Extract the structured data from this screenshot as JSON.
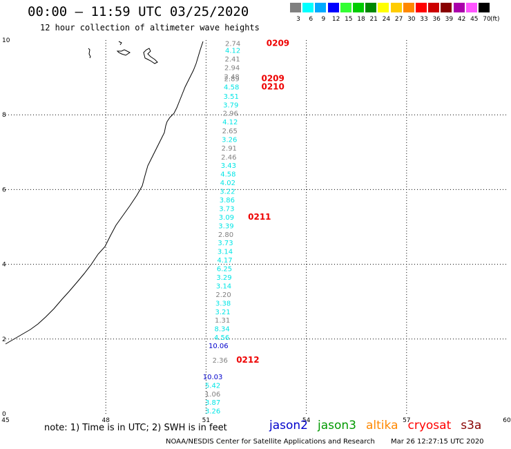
{
  "title": "00:00 – 11:59 UTC 03/25/2020",
  "subtitle": "12 hour collection of altimeter wave heights",
  "legend": {
    "unit": "(ft)",
    "bins": [
      {
        "label": "3",
        "color": "#808080"
      },
      {
        "label": "6",
        "color": "#00ffff"
      },
      {
        "label": "9",
        "color": "#00aaff"
      },
      {
        "label": "12",
        "color": "#0000ff"
      },
      {
        "label": "15",
        "color": "#33ff33"
      },
      {
        "label": "18",
        "color": "#00cc00"
      },
      {
        "label": "21",
        "color": "#008800"
      },
      {
        "label": "24",
        "color": "#ffff00"
      },
      {
        "label": "27",
        "color": "#ffcc00"
      },
      {
        "label": "30",
        "color": "#ff8800"
      },
      {
        "label": "33",
        "color": "#ff0000"
      },
      {
        "label": "36",
        "color": "#cc0000"
      },
      {
        "label": "39",
        "color": "#880000"
      },
      {
        "label": "42",
        "color": "#aa00aa"
      },
      {
        "label": "45",
        "color": "#ff55ff"
      },
      {
        "label": "70",
        "color": "#000000"
      }
    ]
  },
  "axes": {
    "lon_labels": [
      "45",
      "48",
      "51",
      "54",
      "57",
      "60"
    ],
    "lat_labels": [
      "0",
      "2",
      "4",
      "6",
      "8",
      "10"
    ],
    "lon_range": [
      45,
      60
    ],
    "lat_range": [
      0,
      10
    ]
  },
  "observations": [
    {
      "v": "2.74",
      "lon": 51.8,
      "lat": 9.92,
      "c": "#808080"
    },
    {
      "v": "4.12",
      "lon": 51.8,
      "lat": 9.73,
      "c": "#00e5e5"
    },
    {
      "v": "2.41",
      "lon": 51.79,
      "lat": 9.5,
      "c": "#808080"
    },
    {
      "v": "2.94",
      "lon": 51.78,
      "lat": 9.27,
      "c": "#808080"
    },
    {
      "v": "2.48",
      "lon": 51.77,
      "lat": 9.03,
      "c": "#808080"
    },
    {
      "v": "2.89",
      "lon": 51.77,
      "lat": 8.97,
      "c": "#808080"
    },
    {
      "v": "4.58",
      "lon": 51.76,
      "lat": 8.75,
      "c": "#00e5e5"
    },
    {
      "v": "3.51",
      "lon": 51.75,
      "lat": 8.5,
      "c": "#00e5e5"
    },
    {
      "v": "3.79",
      "lon": 51.74,
      "lat": 8.27,
      "c": "#00e5e5"
    },
    {
      "v": "2.96",
      "lon": 51.73,
      "lat": 8.05,
      "c": "#808080"
    },
    {
      "v": "4.12",
      "lon": 51.72,
      "lat": 7.82,
      "c": "#00e5e5"
    },
    {
      "v": "2.65",
      "lon": 51.71,
      "lat": 7.58,
      "c": "#808080"
    },
    {
      "v": "3.26",
      "lon": 51.7,
      "lat": 7.35,
      "c": "#00e5e5"
    },
    {
      "v": "2.91",
      "lon": 51.69,
      "lat": 7.12,
      "c": "#808080"
    },
    {
      "v": "2.46",
      "lon": 51.68,
      "lat": 6.88,
      "c": "#808080"
    },
    {
      "v": "3.43",
      "lon": 51.67,
      "lat": 6.65,
      "c": "#00e5e5"
    },
    {
      "v": "4.58",
      "lon": 51.66,
      "lat": 6.42,
      "c": "#00e5e5"
    },
    {
      "v": "4.02",
      "lon": 51.65,
      "lat": 6.19,
      "c": "#00e5e5"
    },
    {
      "v": "3.22",
      "lon": 51.64,
      "lat": 5.96,
      "c": "#00e5e5"
    },
    {
      "v": "3.86",
      "lon": 51.63,
      "lat": 5.73,
      "c": "#00e5e5"
    },
    {
      "v": "3.73",
      "lon": 51.62,
      "lat": 5.5,
      "c": "#00e5e5"
    },
    {
      "v": "3.09",
      "lon": 51.61,
      "lat": 5.27,
      "c": "#00e5e5"
    },
    {
      "v": "3.39",
      "lon": 51.6,
      "lat": 5.04,
      "c": "#00e5e5"
    },
    {
      "v": "2.80",
      "lon": 51.59,
      "lat": 4.81,
      "c": "#808080"
    },
    {
      "v": "3.73",
      "lon": 51.58,
      "lat": 4.58,
      "c": "#00e5e5"
    },
    {
      "v": "3.14",
      "lon": 51.57,
      "lat": 4.35,
      "c": "#00e5e5"
    },
    {
      "v": "4.17",
      "lon": 51.56,
      "lat": 4.12,
      "c": "#00e5e5"
    },
    {
      "v": "6.25",
      "lon": 51.55,
      "lat": 3.89,
      "c": "#00e5e5"
    },
    {
      "v": "3.29",
      "lon": 51.54,
      "lat": 3.66,
      "c": "#00e5e5"
    },
    {
      "v": "3.14",
      "lon": 51.53,
      "lat": 3.43,
      "c": "#00e5e5"
    },
    {
      "v": "2.20",
      "lon": 51.52,
      "lat": 3.2,
      "c": "#808080"
    },
    {
      "v": "3.38",
      "lon": 51.51,
      "lat": 2.97,
      "c": "#00e5e5"
    },
    {
      "v": "3.21",
      "lon": 51.5,
      "lat": 2.74,
      "c": "#00e5e5"
    },
    {
      "v": "1.31",
      "lon": 51.49,
      "lat": 2.51,
      "c": "#808080"
    },
    {
      "v": "8.34",
      "lon": 51.48,
      "lat": 2.28,
      "c": "#00e5e5"
    },
    {
      "v": "4.56",
      "lon": 51.47,
      "lat": 2.05,
      "c": "#00e5e5"
    },
    {
      "v": "10.06",
      "lon": 51.37,
      "lat": 1.83,
      "c": "#0000cc"
    },
    {
      "v": "2.36",
      "lon": 51.42,
      "lat": 1.44,
      "c": "#808080"
    },
    {
      "v": "10.03",
      "lon": 51.2,
      "lat": 1.0,
      "c": "#0000cc"
    },
    {
      "v": "5.42",
      "lon": 51.2,
      "lat": 0.77,
      "c": "#00e5e5"
    },
    {
      "v": "1.06",
      "lon": 51.2,
      "lat": 0.54,
      "c": "#808080"
    },
    {
      "v": "3.87",
      "lon": 51.2,
      "lat": 0.31,
      "c": "#00e5e5"
    },
    {
      "v": "3.26",
      "lon": 51.2,
      "lat": 0.08,
      "c": "#00e5e5"
    }
  ],
  "time_labels": [
    {
      "t": "0209",
      "lon": 53.15,
      "lat": 9.92
    },
    {
      "t": "0209",
      "lon": 53.0,
      "lat": 8.97
    },
    {
      "t": "0210",
      "lon": 53.0,
      "lat": 8.75
    },
    {
      "t": "0211",
      "lon": 52.6,
      "lat": 5.27
    },
    {
      "t": "0212",
      "lon": 52.25,
      "lat": 1.44
    }
  ],
  "note": "note: 1) Time is in UTC; 2) SWH is in feet",
  "satellites": [
    {
      "name": "jason2",
      "color": "#0000cc"
    },
    {
      "name": "jason3",
      "color": "#009900"
    },
    {
      "name": "altika",
      "color": "#ff8800"
    },
    {
      "name": "cryosat",
      "color": "#ff0000"
    },
    {
      "name": "s3a",
      "color": "#880000"
    }
  ],
  "credit": "NOAA/NESDIS Center for Satellite Applications and Research",
  "timestamp": "Mar 26 12:27:15 UTC 2020"
}
